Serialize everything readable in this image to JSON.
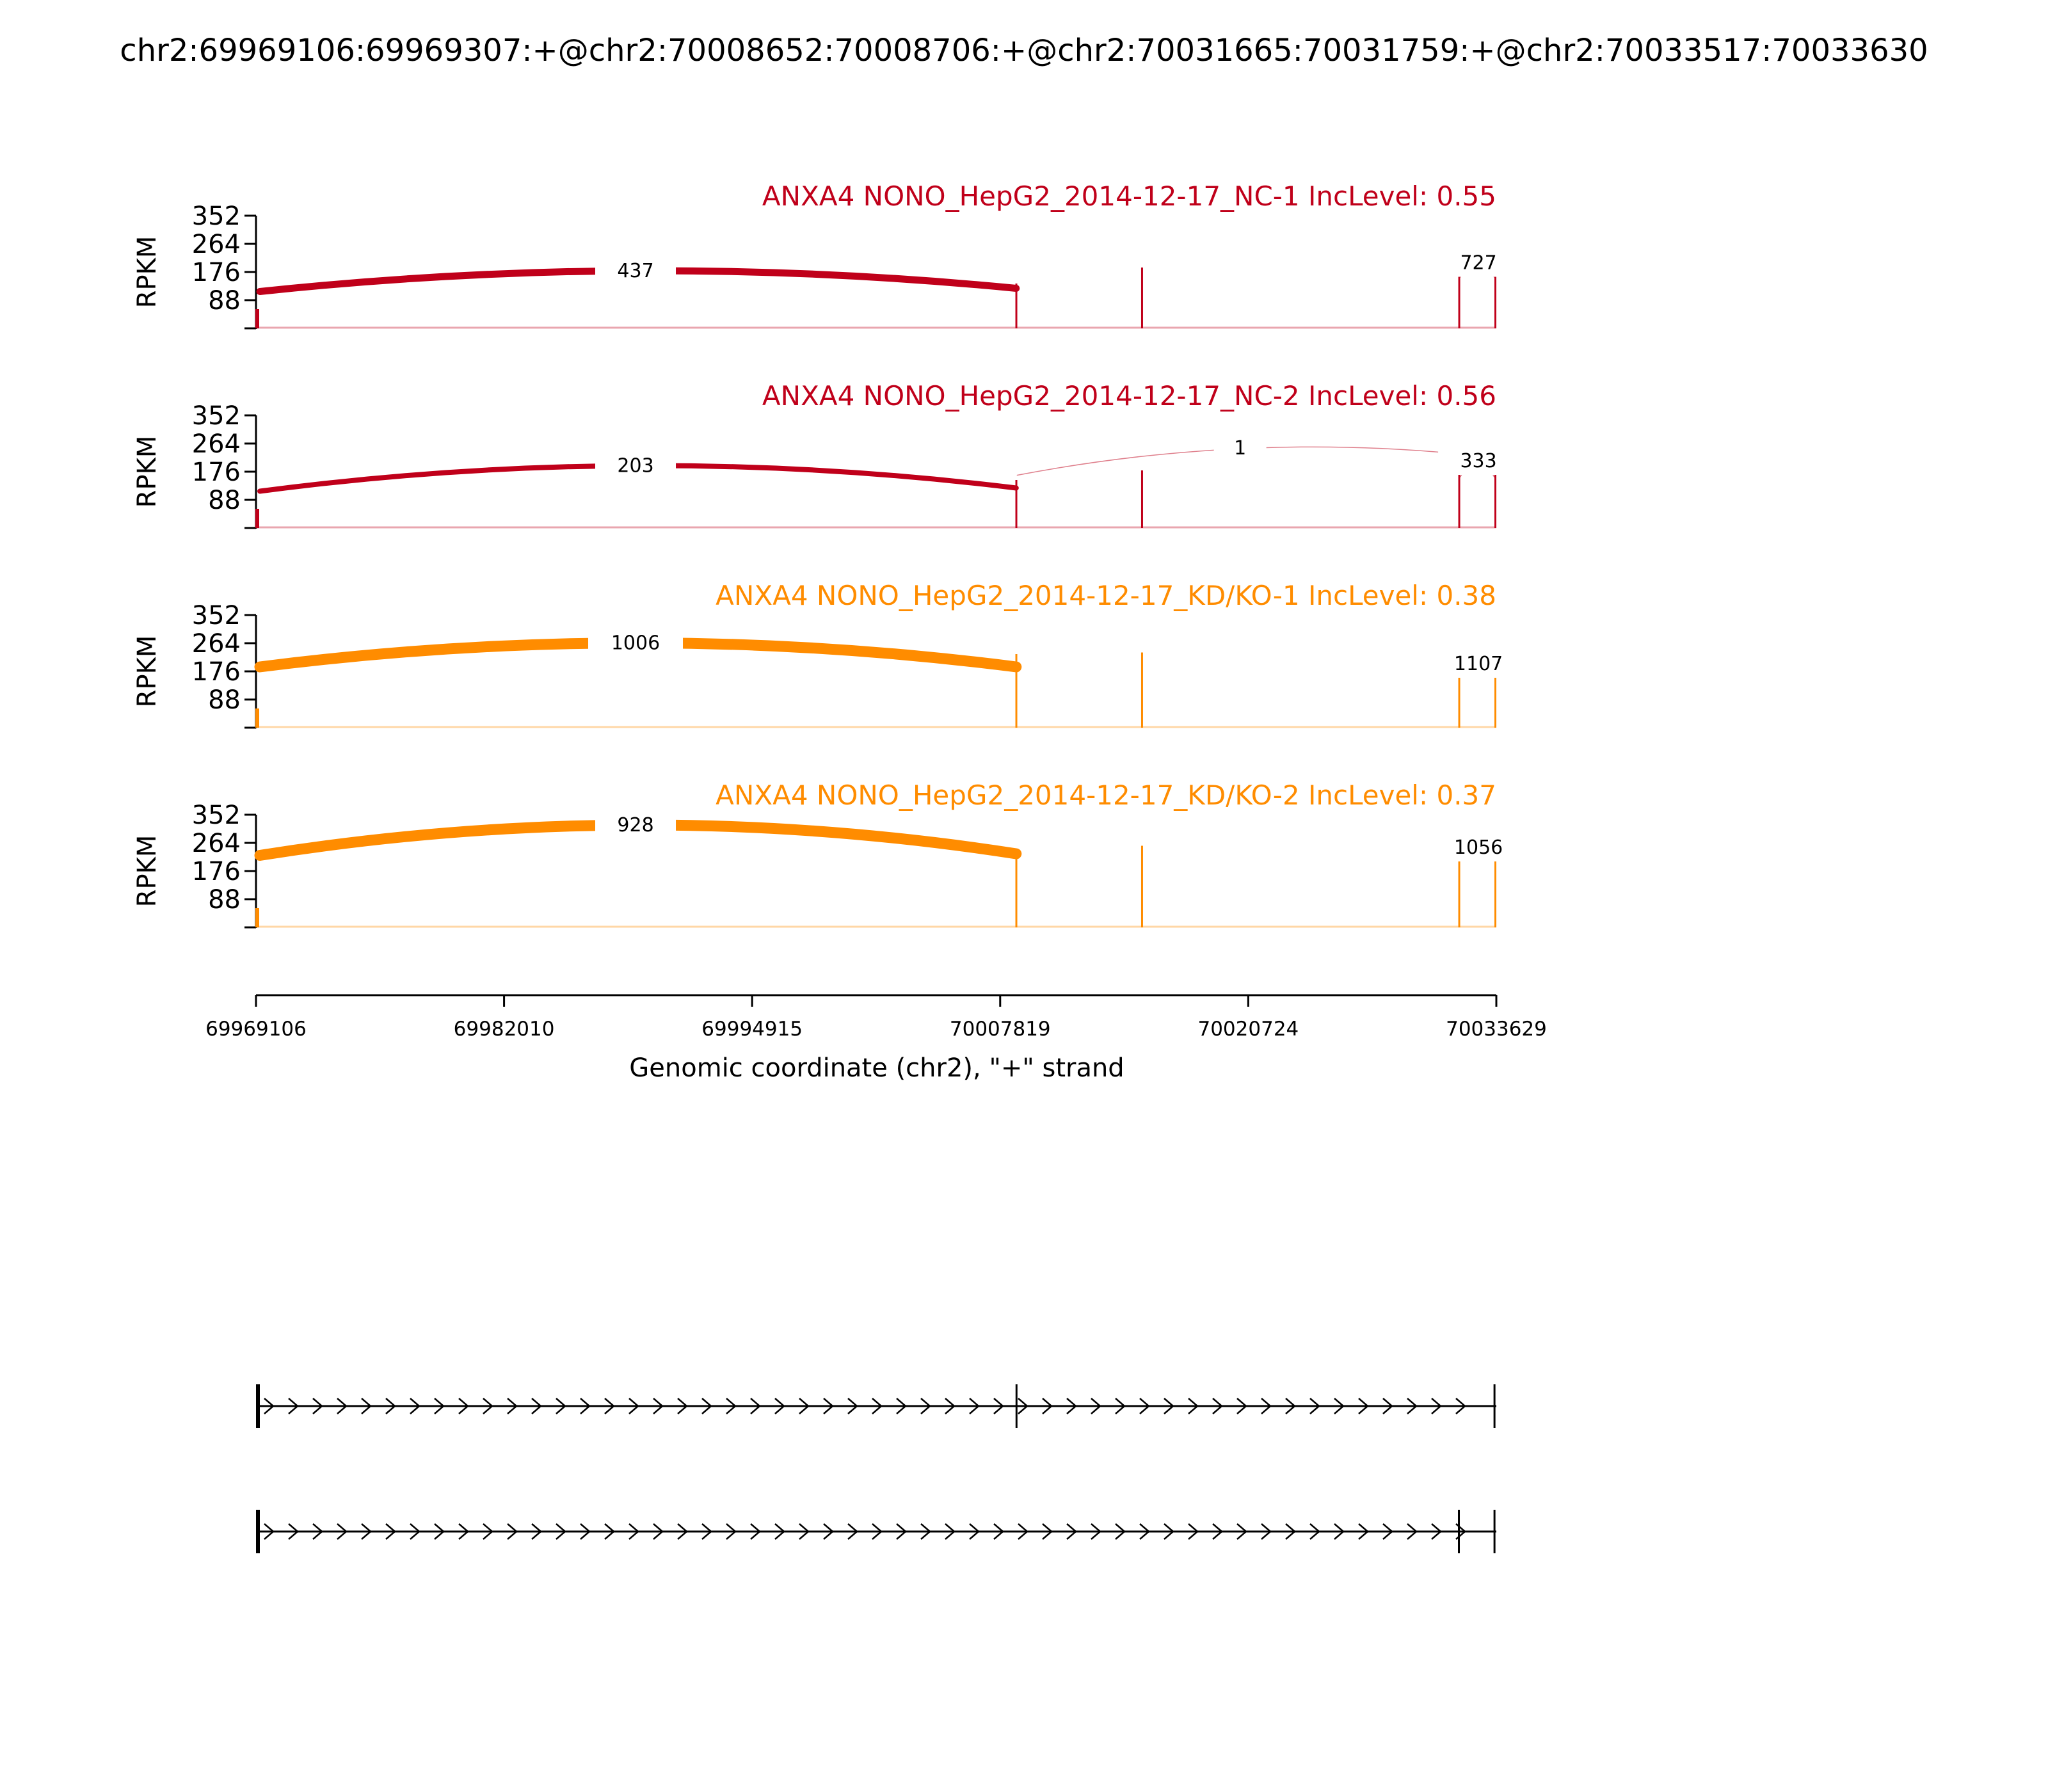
{
  "chart_data": {
    "type": "sashimi",
    "title": "chr2:69969106:69969307:+@chr2:70008652:70008706:+@chr2:70031665:70031759:+@chr2:70033517:70033630",
    "xlabel": "Genomic coordinate (chr2), \"+\" strand",
    "ylabel": "RPKM",
    "xlim": [
      69969106,
      70033629
    ],
    "x_ticks": [
      "69969106",
      "69982010",
      "69994915",
      "70007819",
      "70020724",
      "70033629"
    ],
    "ylim": [
      0,
      352
    ],
    "y_ticks": [
      "352",
      "264",
      "176",
      "88"
    ],
    "exons": [
      [
        69969106,
        69969307
      ],
      [
        70008652,
        70008706
      ],
      [
        70031665,
        70031759
      ],
      [
        70033517,
        70033630
      ]
    ],
    "panels": [
      {
        "name": "ANXA4 NONO_HepG2_2014-12-17_NC-1 IncLevel: 0.55",
        "color": "#C0001A",
        "coverage_peaks": [
          {
            "x": 70008660,
            "value": 140
          },
          {
            "x": 70015200,
            "value": 190
          },
          {
            "x": 70031700,
            "value": 175
          },
          {
            "x": 70033580,
            "value": 170
          }
        ],
        "junctions": [
          {
            "start": 69969307,
            "end": 70008652,
            "count": "437",
            "start_y": 115,
            "end_y": 125,
            "apex_y": 180,
            "width": 11,
            "label_x": 69988850
          },
          {
            "start": 70031759,
            "end": 70033517,
            "count": "727",
            "start_y": 160,
            "end_y": 160,
            "apex_y": 205,
            "width": 0,
            "label_x": 70032700
          }
        ]
      },
      {
        "name": "ANXA4 NONO_HepG2_2014-12-17_NC-2 IncLevel: 0.56",
        "color": "#C0001A",
        "coverage_peaks": [
          {
            "x": 70008660,
            "value": 150
          },
          {
            "x": 70015200,
            "value": 180
          },
          {
            "x": 70031700,
            "value": 175
          },
          {
            "x": 70033580,
            "value": 175
          }
        ],
        "junctions": [
          {
            "start": 69969307,
            "end": 70008652,
            "count": "203",
            "start_y": 115,
            "end_y": 125,
            "apex_y": 195,
            "width": 8,
            "label_x": 69988850
          },
          {
            "start": 70008706,
            "end": 70033517,
            "count": "1",
            "start_y": 165,
            "end_y": 220,
            "apex_y": 250,
            "width": 1,
            "label_x": 70020300
          },
          {
            "start": 70031759,
            "end": 70033517,
            "count": "333",
            "start_y": 160,
            "end_y": 160,
            "apex_y": 210,
            "width": 0,
            "label_x": 70032700
          }
        ]
      },
      {
        "name": "ANXA4 NONO_HepG2_2014-12-17_KD/KO-1 IncLevel: 0.38",
        "color": "#FF8C00",
        "coverage_peaks": [
          {
            "x": 70008660,
            "value": 230
          },
          {
            "x": 70015200,
            "value": 235
          },
          {
            "x": 70031700,
            "value": 200
          },
          {
            "x": 70033580,
            "value": 200
          }
        ],
        "junctions": [
          {
            "start": 69969307,
            "end": 70008652,
            "count": "1006",
            "start_y": 190,
            "end_y": 190,
            "apex_y": 265,
            "width": 17,
            "label_x": 69988850
          },
          {
            "start": 70031759,
            "end": 70033517,
            "count": "1107",
            "start_y": 200,
            "end_y": 200,
            "apex_y": 200,
            "width": 4,
            "label_x": 70032700
          }
        ]
      },
      {
        "name": "ANXA4 NONO_HepG2_2014-12-17_KD/KO-2 IncLevel: 0.37",
        "color": "#FF8C00",
        "coverage_peaks": [
          {
            "x": 70008660,
            "value": 240
          },
          {
            "x": 70015200,
            "value": 255
          },
          {
            "x": 70031700,
            "value": 250
          },
          {
            "x": 70033580,
            "value": 250
          }
        ],
        "junctions": [
          {
            "start": 69969307,
            "end": 70008652,
            "count": "928",
            "start_y": 225,
            "end_y": 230,
            "apex_y": 320,
            "width": 17,
            "label_x": 69988850
          },
          {
            "start": 70031759,
            "end": 70033517,
            "count": "1056",
            "start_y": 250,
            "end_y": 250,
            "apex_y": 250,
            "width": 10,
            "label_x": 70032700
          }
        ]
      }
    ],
    "transcripts": [
      {
        "exons": [
          [
            69969106,
            69969307
          ],
          [
            70008652,
            70008706
          ],
          [
            70033517,
            70033630
          ]
        ]
      },
      {
        "exons": [
          [
            69969106,
            69969307
          ],
          [
            70031665,
            70031759
          ],
          [
            70033517,
            70033630
          ]
        ]
      }
    ]
  }
}
